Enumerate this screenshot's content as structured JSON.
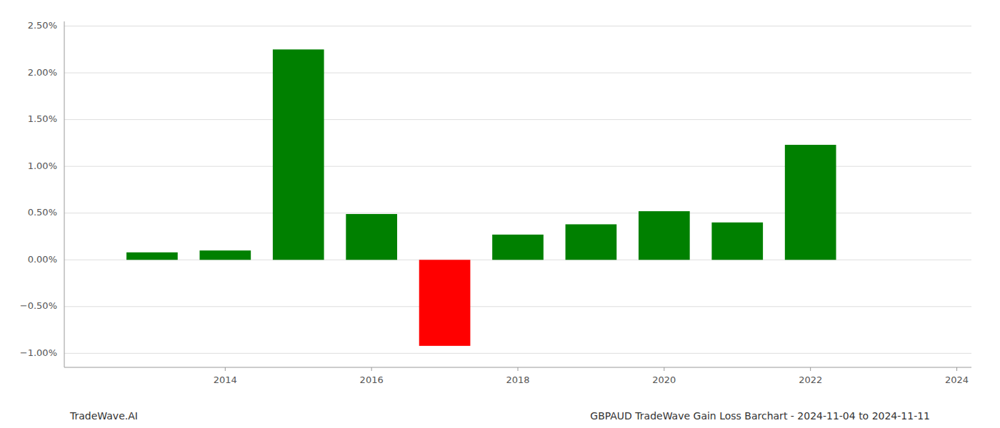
{
  "chart_data": {
    "type": "bar",
    "x": [
      2013,
      2014,
      2015,
      2016,
      2017,
      2018,
      2019,
      2020,
      2021,
      2022
    ],
    "values": [
      0.08,
      0.1,
      2.25,
      0.49,
      -0.92,
      0.27,
      0.38,
      0.52,
      0.4,
      1.23
    ],
    "colors": [
      "#008000",
      "#008000",
      "#008000",
      "#008000",
      "#ff0000",
      "#008000",
      "#008000",
      "#008000",
      "#008000",
      "#008000"
    ],
    "xlim": [
      2011.8,
      2024.2
    ],
    "xticks": [
      2014,
      2016,
      2018,
      2020,
      2022,
      2024
    ],
    "ylim": [
      -1.15,
      2.55
    ],
    "yticks": [
      {
        "value": -1.0,
        "label": "−1.00%"
      },
      {
        "value": -0.5,
        "label": "−0.50%"
      },
      {
        "value": 0.0,
        "label": "0.00%"
      },
      {
        "value": 0.5,
        "label": "0.50%"
      },
      {
        "value": 1.0,
        "label": "1.00%"
      },
      {
        "value": 1.5,
        "label": "1.50%"
      },
      {
        "value": 2.0,
        "label": "2.00%"
      },
      {
        "value": 2.5,
        "label": "2.50%"
      }
    ],
    "grid": true,
    "annotations": [
      "TradeWave.AI",
      "GBPAUD TradeWave Gain Loss Barchart - 2024-11-04 to 2024-11-11"
    ]
  }
}
